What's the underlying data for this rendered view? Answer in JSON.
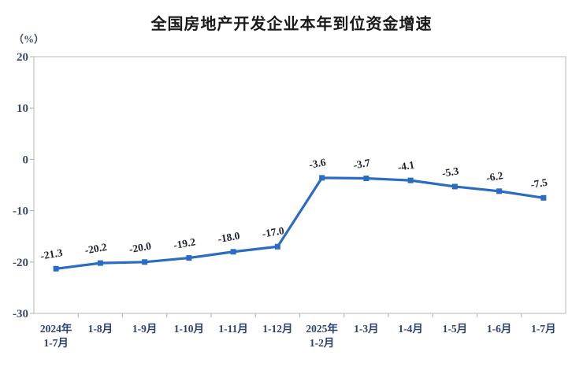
{
  "chart_data": {
    "type": "line",
    "title": "全国房地产开发企业本年到位资金增速",
    "unit_label": "（%）",
    "categories": [
      "2024年\n1-7月",
      "1-8月",
      "1-9月",
      "1-10月",
      "1-11月",
      "1-12月",
      "2025年\n1-2月",
      "1-3月",
      "1-4月",
      "1-5月",
      "1-6月",
      "1-7月"
    ],
    "values": [
      -21.3,
      -20.2,
      -20.0,
      -19.2,
      -18.0,
      -17.0,
      -3.6,
      -3.7,
      -4.1,
      -5.3,
      -6.2,
      -7.5
    ],
    "data_labels": [
      "-21.3",
      "-20.2",
      "-20.0",
      "-19.2",
      "-18.0",
      "-17.0",
      "-3.6",
      "-3.7",
      "-4.1",
      "-5.3",
      "-6.2",
      "-7.5"
    ],
    "ylim": [
      -30,
      20
    ],
    "yticks": [
      20,
      10,
      0,
      -10,
      -20,
      -30
    ],
    "grid": false,
    "legend": "none",
    "marker": "square",
    "colors": {
      "line": "#2a6bc4",
      "marker": "#2a6bc4",
      "plot_border": "#c9c9c9",
      "tick": "#b4bac2",
      "y_tick_text": "#3d4a63",
      "x_tick_text": "#2c4270",
      "data_label_text": "#20242e",
      "title_text": "#1a1a1a"
    }
  }
}
